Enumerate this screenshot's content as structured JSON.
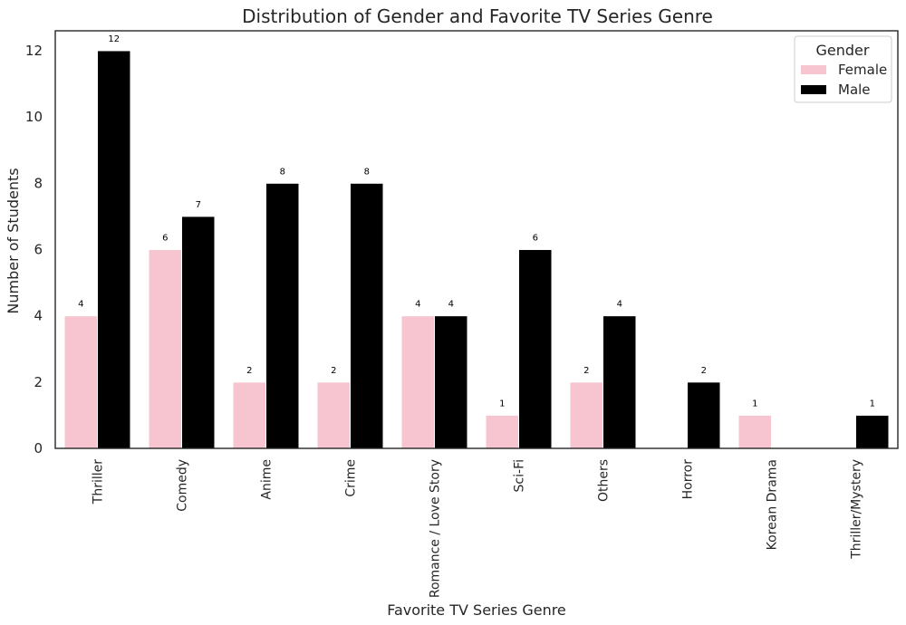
{
  "chart_data": {
    "type": "bar",
    "title": "Distribution of Gender and Favorite TV Series Genre",
    "xlabel": "Favorite TV Series Genre",
    "ylabel": "Number of Students",
    "ylim": [
      0,
      12.6
    ],
    "yticks": [
      0,
      2,
      4,
      6,
      8,
      10,
      12
    ],
    "grid": false,
    "legend_placement": "top-right",
    "legend_title": "Gender",
    "categories": [
      "Thriller",
      "Comedy",
      "Anime",
      "Crime",
      "Romance / Love Story",
      "Sci-Fi",
      "Others",
      "Horror",
      "Korean Drama",
      "Thriller/Mystery"
    ],
    "series": [
      {
        "name": "Female",
        "color": "#f7c5d0",
        "values": [
          4,
          6,
          2,
          2,
          4,
          1,
          2,
          null,
          1,
          null
        ]
      },
      {
        "name": "Male",
        "color": "#000000",
        "values": [
          12,
          7,
          8,
          8,
          4,
          6,
          4,
          2,
          null,
          1
        ]
      }
    ]
  }
}
